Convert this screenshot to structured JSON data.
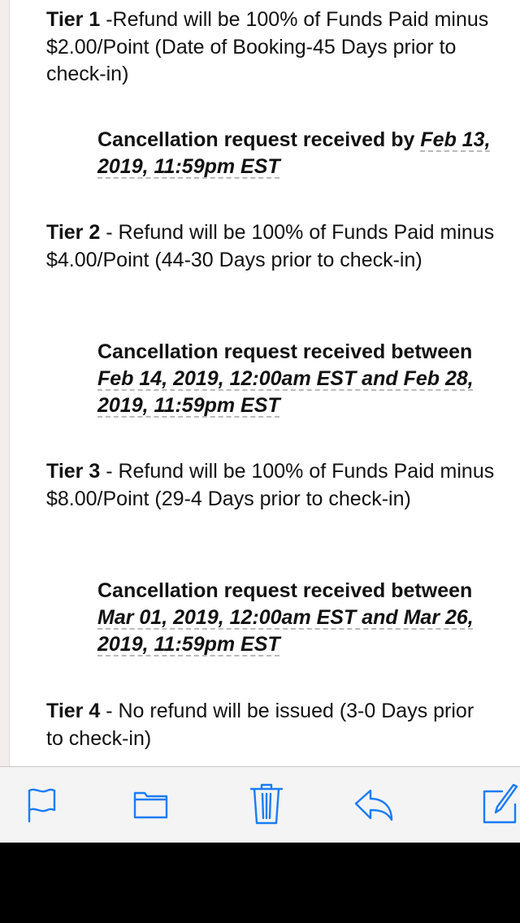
{
  "email": {
    "tiers": [
      {
        "label": "Tier 1",
        "text": " -Refund will be 100% of Funds Paid minus $2.00/Point (Date of Booking-45 Days prior to check-in)",
        "deadline_prefix": "Cancellation request received by ",
        "deadline_date": "Feb 13, 2019, 11:59pm EST"
      },
      {
        "label": "Tier 2",
        "text": " - Refund will be 100% of Funds Paid minus $4.00/Point (44-30 Days prior to check-in)",
        "deadline_prefix": "Cancellation request received between ",
        "deadline_date": "Feb 14, 2019, 12:00am EST and Feb 28, 2019, 11:59pm EST"
      },
      {
        "label": "Tier 3",
        "text": " - Refund will be 100% of Funds Paid minus $8.00/Point (29-4 Days prior to check-in)",
        "deadline_prefix": "Cancellation request received between ",
        "deadline_date": "Mar 01, 2019, 12:00am EST and Mar 26, 2019, 11:59pm EST"
      },
      {
        "label": "Tier 4",
        "text": " -  No refund will be issued (3-0 Days prior to check-in)"
      }
    ]
  },
  "toolbar": {
    "accent": "#1a7cf5",
    "icons": [
      "flag-icon",
      "folder-icon",
      "trash-icon",
      "reply-icon",
      "compose-icon"
    ]
  }
}
